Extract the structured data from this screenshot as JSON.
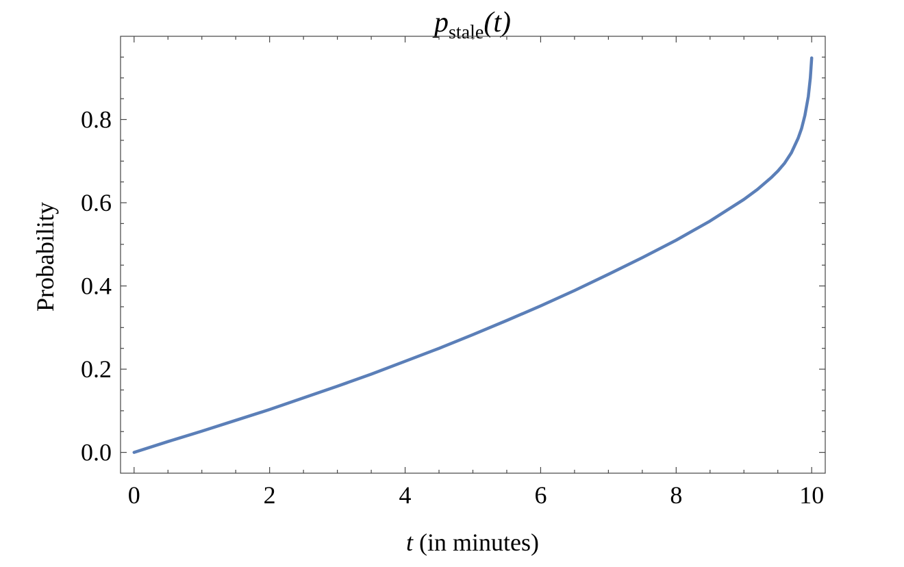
{
  "chart_data": {
    "type": "line",
    "title": {
      "base": "p",
      "subscript": "stale",
      "suffix": "(t)"
    },
    "xlabel": {
      "var": "t",
      "rest": " (in minutes)"
    },
    "ylabel": "Probability",
    "xlim": [
      -0.2,
      10.2
    ],
    "ylim": [
      -0.05,
      1.0
    ],
    "x_ticks": [
      0,
      2,
      4,
      6,
      8,
      10
    ],
    "x_tick_labels": [
      "0",
      "2",
      "4",
      "6",
      "8",
      "10"
    ],
    "x_minor_step": 0.5,
    "y_ticks": [
      0.0,
      0.2,
      0.4,
      0.6,
      0.8
    ],
    "y_tick_labels": [
      "0.0",
      "0.2",
      "0.4",
      "0.6",
      "0.8"
    ],
    "y_minor_step": 0.05,
    "grid": false,
    "series": [
      {
        "color": "#5b7fb8",
        "x": [
          0,
          0.5,
          1,
          1.5,
          2,
          2.5,
          3,
          3.5,
          4,
          4.5,
          5,
          5.5,
          6,
          6.5,
          7,
          7.5,
          8,
          8.5,
          9,
          9.2,
          9.4,
          9.5,
          9.6,
          9.7,
          9.8,
          9.85,
          9.9,
          9.95,
          9.98,
          10.0
        ],
        "y": [
          0.0,
          0.026,
          0.051,
          0.077,
          0.103,
          0.131,
          0.159,
          0.188,
          0.219,
          0.25,
          0.283,
          0.317,
          0.352,
          0.389,
          0.428,
          0.468,
          0.51,
          0.556,
          0.608,
          0.632,
          0.66,
          0.676,
          0.695,
          0.72,
          0.755,
          0.778,
          0.81,
          0.855,
          0.9,
          0.948
        ]
      }
    ]
  }
}
